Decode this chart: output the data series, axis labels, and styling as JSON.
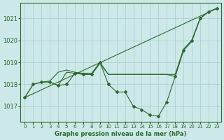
{
  "background_color": "#cce8e8",
  "grid_color": "#aacccc",
  "line_color": "#2d6a2d",
  "xlabel": "Graphe pression niveau de la mer (hPa)",
  "xlim": [
    -0.5,
    23.5
  ],
  "ylim": [
    1016.3,
    1021.7
  ],
  "yticks": [
    1017,
    1018,
    1019,
    1020,
    1021
  ],
  "xticks": [
    0,
    1,
    2,
    3,
    4,
    5,
    6,
    7,
    8,
    9,
    10,
    11,
    12,
    13,
    14,
    15,
    16,
    17,
    18,
    19,
    20,
    21,
    22,
    23
  ],
  "line1_x": [
    0,
    1,
    2,
    3,
    4,
    5,
    6,
    7,
    8,
    9,
    10,
    11,
    12,
    13,
    14,
    15,
    16,
    17,
    18,
    19,
    20,
    21,
    22,
    23
  ],
  "line1_y": [
    1017.4,
    1018.0,
    1018.1,
    1018.1,
    1017.95,
    1018.0,
    1018.5,
    1018.45,
    1018.45,
    1019.0,
    1018.0,
    1017.65,
    1017.65,
    1017.0,
    1016.85,
    1016.6,
    1016.55,
    1017.2,
    1018.35,
    1019.55,
    1020.0,
    1021.0,
    1021.3,
    1021.45
  ],
  "line2_x": [
    0,
    1,
    2,
    3,
    4,
    5,
    6,
    7,
    8,
    9,
    10,
    11,
    12,
    13,
    14,
    15,
    16,
    17,
    18,
    19,
    20,
    21,
    22,
    23
  ],
  "line2_y": [
    1017.4,
    1018.0,
    1018.1,
    1018.15,
    1018.55,
    1018.65,
    1018.55,
    1018.5,
    1018.5,
    1019.0,
    1018.45,
    1018.45,
    1018.45,
    1018.45,
    1018.45,
    1018.45,
    1018.45,
    1018.45,
    1018.45,
    1019.6,
    1020.0,
    1021.0,
    1021.3,
    1021.45
  ],
  "line3_x": [
    0,
    23
  ],
  "line3_y": [
    1017.4,
    1021.45
  ],
  "line4_x": [
    3,
    4,
    5,
    6,
    7,
    8,
    9,
    10,
    11,
    12,
    13,
    14,
    15,
    16,
    17,
    18,
    19,
    20,
    21,
    22,
    23
  ],
  "line4_y": [
    1018.1,
    1017.95,
    1018.55,
    1018.5,
    1018.5,
    1018.45,
    1018.95,
    1018.45,
    1018.45,
    1018.45,
    1018.45,
    1018.45,
    1018.45,
    1018.45,
    1018.45,
    1018.35,
    1019.55,
    1019.95,
    1021.0,
    1021.3,
    1021.45
  ]
}
